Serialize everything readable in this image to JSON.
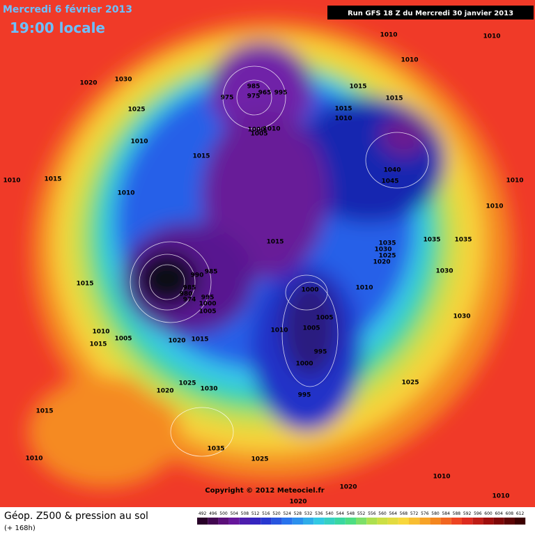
{
  "header": {
    "date": "Mercredi 6 février 2013",
    "time": "19:00 locale",
    "run": "Run GFS 18 Z du Mercredi 30 janvier 2013"
  },
  "copyright": "Copyright © 2012 Meteociel.fr",
  "footer": {
    "title": "Géop. Z500 & pression au sol",
    "lead": "(+ 168h)"
  },
  "legend": {
    "values": [
      492,
      496,
      500,
      504,
      508,
      512,
      516,
      520,
      524,
      528,
      532,
      536,
      540,
      544,
      548,
      552,
      556,
      560,
      564,
      568,
      572,
      576,
      580,
      584,
      588,
      592,
      596,
      600,
      604,
      608,
      612
    ]
  },
  "isobar_labels": [
    "1010",
    "1010",
    "1010",
    "1020",
    "1030",
    "1015",
    "1015",
    "975",
    "985",
    "975",
    "965",
    "995",
    "1025",
    "1015",
    "1010",
    "1000",
    "1010",
    "1005",
    "1010",
    "1015",
    "1040",
    "1045",
    "1010",
    "1015",
    "1010",
    "1010",
    "1010",
    "1015",
    "1035",
    "1030",
    "1025",
    "1020",
    "1035",
    "1035",
    "990",
    "985",
    "1030",
    "1015",
    "985",
    "980",
    "974",
    "995",
    "1000",
    "1005",
    "1000",
    "1010",
    "1030",
    "1010",
    "1005",
    "1005",
    "1010",
    "1005",
    "1015",
    "1020",
    "1015",
    "995",
    "1000",
    "1025",
    "1020",
    "1030",
    "1025",
    "995",
    "1015",
    "1035",
    "1010",
    "1025",
    "1010",
    "1020",
    "1020",
    "1010"
  ]
}
